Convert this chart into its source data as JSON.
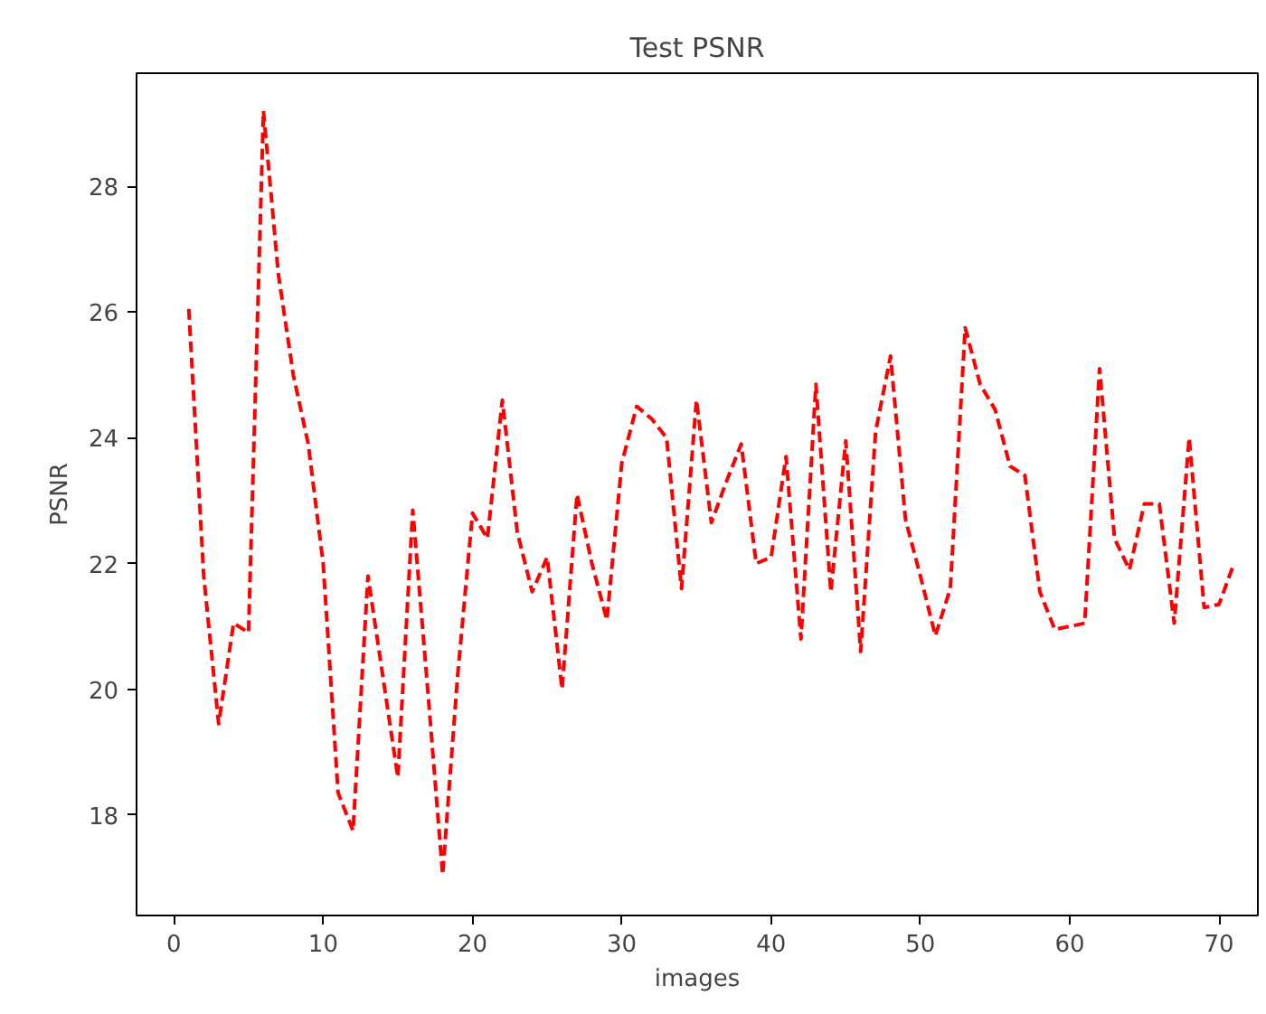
{
  "chart_data": {
    "type": "line",
    "title": "Test PSNR",
    "xlabel": "images",
    "ylabel": "PSNR",
    "x": [
      1,
      2,
      3,
      4,
      5,
      6,
      7,
      8,
      9,
      10,
      11,
      12,
      13,
      14,
      15,
      16,
      17,
      18,
      19,
      20,
      21,
      22,
      23,
      24,
      25,
      26,
      27,
      28,
      29,
      30,
      31,
      32,
      33,
      34,
      35,
      36,
      37,
      38,
      39,
      40,
      41,
      42,
      43,
      44,
      45,
      46,
      47,
      48,
      49,
      50,
      51,
      52,
      53,
      54,
      55,
      56,
      57,
      58,
      59,
      60,
      61,
      62,
      63,
      64,
      65,
      66,
      67,
      68,
      69,
      70,
      71
    ],
    "series": [
      {
        "color": "#ff0000",
        "values": [
          26.05,
          21.8,
          19.45,
          21.05,
          20.9,
          29.2,
          26.6,
          25.0,
          23.9,
          22.0,
          18.35,
          17.75,
          21.8,
          20.2,
          18.6,
          22.85,
          20.0,
          17.05,
          20.2,
          22.8,
          22.4,
          24.6,
          22.5,
          21.55,
          22.1,
          20.0,
          23.1,
          22.0,
          21.1,
          23.6,
          24.5,
          24.3,
          24.0,
          21.6,
          24.6,
          22.65,
          23.3,
          23.9,
          22.0,
          22.1,
          23.7,
          20.8,
          24.85,
          21.55,
          23.95,
          20.6,
          24.1,
          25.3,
          22.7,
          21.8,
          20.85,
          21.6,
          25.75,
          24.85,
          24.45,
          23.55,
          23.4,
          21.55,
          20.95,
          21.0,
          21.05,
          25.1,
          22.4,
          21.9,
          22.95,
          22.95,
          21.05,
          24.0,
          21.3,
          21.35,
          22.0
        ]
      }
    ],
    "line_style": "dashed",
    "marker": "none",
    "grid": false,
    "xlim": [
      -2.5,
      72.6
    ],
    "ylim": [
      16.4,
      29.8
    ],
    "xticks": [
      0,
      10,
      20,
      30,
      40,
      50,
      60,
      70
    ],
    "yticks": [
      18,
      20,
      22,
      24,
      26,
      28
    ]
  }
}
